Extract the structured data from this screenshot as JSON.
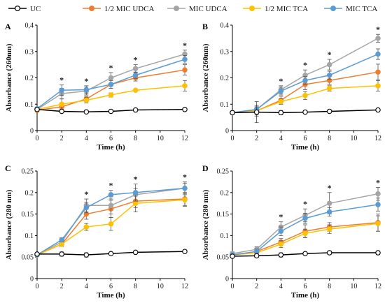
{
  "chart_data": [
    {
      "type": "line",
      "panel": "A",
      "xlabel": "Time (h)",
      "ylabel": "Absorbance (260nm)",
      "x": [
        0,
        2,
        4,
        6,
        8,
        12
      ],
      "xticks": [
        "0",
        "2",
        "4",
        "6",
        "8",
        "10",
        "12"
      ],
      "ylim": [
        0,
        0.4
      ],
      "yticks": [
        "0",
        "0.1",
        "0.2",
        "0.3",
        "0,4"
      ],
      "significance": [
        2,
        4,
        6,
        8,
        12
      ],
      "series": [
        {
          "name": "UC",
          "values": [
            0.08,
            0.073,
            0.071,
            0.073,
            0.078,
            0.08
          ],
          "err": [
            0.004,
            0.003,
            0.003,
            0.003,
            0.003,
            0.003
          ]
        },
        {
          "name": "1/2 MIC UDCA",
          "values": [
            0.077,
            0.09,
            0.12,
            0.175,
            0.2,
            0.23
          ],
          "err": [
            0.006,
            0.015,
            0.01,
            0.015,
            0.012,
            0.02
          ]
        },
        {
          "name": "MIC UDCA",
          "values": [
            0.08,
            0.14,
            0.15,
            0.2,
            0.235,
            0.29
          ],
          "err": [
            0.006,
            0.02,
            0.015,
            0.02,
            0.015,
            0.015
          ]
        },
        {
          "name": "1/2 MIC TCA",
          "values": [
            0.08,
            0.1,
            0.115,
            0.135,
            0.153,
            0.17
          ],
          "err": [
            0.005,
            0.02,
            0.01,
            0.008,
            0.005,
            0.02
          ]
        },
        {
          "name": "MIC TCA",
          "values": [
            0.083,
            0.153,
            0.155,
            0.175,
            0.21,
            0.27
          ],
          "err": [
            0.006,
            0.02,
            0.015,
            0.015,
            0.012,
            0.015
          ]
        }
      ]
    },
    {
      "type": "line",
      "panel": "B",
      "xlabel": "Time (h)",
      "ylabel": "Absorbance (260nm)",
      "x": [
        0,
        2,
        4,
        6,
        8,
        12
      ],
      "xticks": [
        "0",
        "2",
        "4",
        "6",
        "8",
        "10",
        "12"
      ],
      "ylim": [
        0,
        0.4
      ],
      "yticks": [
        "0",
        "0.1",
        "0.2",
        "0.3",
        "0.4"
      ],
      "significance": [
        4,
        6,
        8,
        12
      ],
      "series": [
        {
          "name": "UC",
          "values": [
            0.068,
            0.07,
            0.068,
            0.07,
            0.073,
            0.078
          ],
          "err": [
            0.004,
            0.04,
            0.008,
            0.005,
            0.004,
            0.004
          ]
        },
        {
          "name": "1/2 MIC UDCA",
          "values": [
            0.068,
            0.075,
            0.115,
            0.175,
            0.19,
            0.222
          ],
          "err": [
            0.006,
            0.02,
            0.015,
            0.02,
            0.015,
            0.03
          ]
        },
        {
          "name": "MIC UDCA",
          "values": [
            0.068,
            0.08,
            0.155,
            0.21,
            0.25,
            0.35
          ],
          "err": [
            0.006,
            0.01,
            0.015,
            0.02,
            0.02,
            0.015
          ]
        },
        {
          "name": "1/2 MIC TCA",
          "values": [
            0.068,
            0.075,
            0.11,
            0.133,
            0.16,
            0.17
          ],
          "err": [
            0.005,
            0.015,
            0.01,
            0.015,
            0.01,
            0.02
          ]
        },
        {
          "name": "MIC TCA",
          "values": [
            0.068,
            0.08,
            0.15,
            0.19,
            0.21,
            0.29
          ],
          "err": [
            0.006,
            0.01,
            0.015,
            0.015,
            0.015,
            0.02
          ]
        }
      ]
    },
    {
      "type": "line",
      "panel": "C",
      "xlabel": "Time (h)",
      "ylabel": "Absorbance (280 nm)",
      "x": [
        0,
        2,
        4,
        6,
        8,
        12
      ],
      "xticks": [
        "0",
        "2",
        "4",
        "6",
        "8",
        "10",
        "12"
      ],
      "ylim": [
        0,
        0.25
      ],
      "yticks": [
        "0",
        "0.05",
        "0.1",
        "0.15",
        "0.2",
        "0.25"
      ],
      "significance": [
        4,
        6,
        8,
        12
      ],
      "series": [
        {
          "name": "UC",
          "values": [
            0.057,
            0.057,
            0.055,
            0.058,
            0.061,
            0.063
          ],
          "err": [
            0.003,
            0.005,
            0.005,
            0.003,
            0.003,
            0.003
          ]
        },
        {
          "name": "1/2 MIC UDCA",
          "values": [
            0.055,
            0.08,
            0.15,
            0.162,
            0.18,
            0.185
          ],
          "err": [
            0.004,
            0.005,
            0.012,
            0.02,
            0.015,
            0.015
          ]
        },
        {
          "name": "MIC UDCA",
          "values": [
            0.055,
            0.085,
            0.17,
            0.17,
            0.195,
            0.21
          ],
          "err": [
            0.004,
            0.005,
            0.015,
            0.02,
            0.015,
            0.015
          ]
        },
        {
          "name": "1/2 MIC TCA",
          "values": [
            0.055,
            0.08,
            0.12,
            0.127,
            0.175,
            0.183
          ],
          "err": [
            0.004,
            0.005,
            0.008,
            0.015,
            0.02,
            0.015
          ]
        },
        {
          "name": "MIC TCA",
          "values": [
            0.055,
            0.09,
            0.165,
            0.195,
            0.2,
            0.21
          ],
          "err": [
            0.004,
            0.005,
            0.012,
            0.01,
            0.02,
            0.012
          ]
        }
      ]
    },
    {
      "type": "line",
      "panel": "D",
      "xlabel": "Time (h)",
      "ylabel": "Absorbance (280 nm)",
      "x": [
        0,
        2,
        4,
        6,
        8,
        12
      ],
      "xticks": [
        "0",
        "2",
        "4",
        "6",
        "8",
        "10",
        "12"
      ],
      "ylim": [
        0,
        0.25
      ],
      "yticks": [
        "0",
        "0.05",
        "0.1",
        "0.15",
        "0.2",
        "0.25"
      ],
      "significance": [
        4,
        6,
        8,
        12
      ],
      "series": [
        {
          "name": "UC",
          "values": [
            0.052,
            0.053,
            0.055,
            0.058,
            0.06,
            0.06
          ],
          "err": [
            0.003,
            0.004,
            0.005,
            0.003,
            0.004,
            0.004
          ]
        },
        {
          "name": "1/2 MIC UDCA",
          "values": [
            0.055,
            0.063,
            0.085,
            0.11,
            0.12,
            0.13
          ],
          "err": [
            0.004,
            0.006,
            0.008,
            0.015,
            0.01,
            0.02
          ]
        },
        {
          "name": "MIC UDCA",
          "values": [
            0.058,
            0.068,
            0.12,
            0.147,
            0.175,
            0.197
          ],
          "err": [
            0.004,
            0.006,
            0.012,
            0.015,
            0.025,
            0.015
          ]
        },
        {
          "name": "1/2 MIC TCA",
          "values": [
            0.055,
            0.06,
            0.08,
            0.105,
            0.115,
            0.128
          ],
          "err": [
            0.004,
            0.006,
            0.008,
            0.01,
            0.01,
            0.018
          ]
        },
        {
          "name": "MIC TCA",
          "values": [
            0.055,
            0.063,
            0.11,
            0.14,
            0.155,
            0.172
          ],
          "err": [
            0.004,
            0.006,
            0.01,
            0.012,
            0.01,
            0.015
          ]
        }
      ]
    }
  ],
  "colors": {
    "UC": "#000000",
    "1/2 MIC UDCA": "#ED7D31",
    "MIC UDCA": "#A5A5A5",
    "1/2 MIC TCA": "#FFC000",
    "MIC TCA": "#5B9BD5"
  },
  "legend_order": [
    "UC",
    "1/2 MIC UDCA",
    "MIC UDCA",
    "1/2 MIC TCA",
    "MIC TCA"
  ]
}
